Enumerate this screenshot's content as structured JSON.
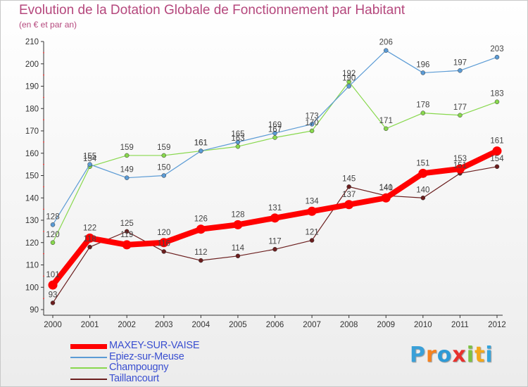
{
  "chart_data": {
    "type": "line",
    "title": "Evolution de la Dotation Globale de Fonctionnement par Habitant",
    "subtitle": "(en € et par an)",
    "x": [
      "2000",
      "2001",
      "2002",
      "2003",
      "2004",
      "2005",
      "2006",
      "2007",
      "2008",
      "2009",
      "2010",
      "2011",
      "2012"
    ],
    "ylim": [
      90,
      210
    ],
    "yticks": [
      90,
      100,
      110,
      120,
      130,
      140,
      150,
      160,
      170,
      180,
      190,
      200,
      210
    ],
    "grid": false,
    "legend_position": "bottom-left",
    "series": [
      {
        "name": "MAXEY-SUR-VAISE",
        "color": "#ff0000",
        "values": [
          101,
          122,
          119,
          120,
          126,
          128,
          131,
          134,
          137,
          140,
          151,
          153,
          161
        ]
      },
      {
        "name": "Epiez-sur-Meuse",
        "color": "#5b9bd5",
        "values": [
          128,
          155,
          149,
          150,
          161,
          165,
          169,
          173,
          190,
          206,
          196,
          197,
          203
        ]
      },
      {
        "name": "Champougny",
        "color": "#88d84d",
        "values": [
          120,
          154,
          159,
          159,
          161,
          163,
          167,
          170,
          192,
          171,
          178,
          177,
          183
        ]
      },
      {
        "name": "Taillancourt",
        "color": "#6b1e1e",
        "values": [
          93,
          118,
          125,
          116,
          112,
          114,
          117,
          121,
          145,
          141,
          140,
          151,
          154
        ]
      }
    ]
  },
  "brand": {
    "letters": [
      "P",
      "r",
      "o",
      "x",
      "i",
      "t",
      "i"
    ],
    "colors": [
      "#3aa0d8",
      "#f58220",
      "#2e9ad6",
      "#e8312d",
      "#7dc242",
      "#f3a81b",
      "#35a4dc"
    ]
  }
}
